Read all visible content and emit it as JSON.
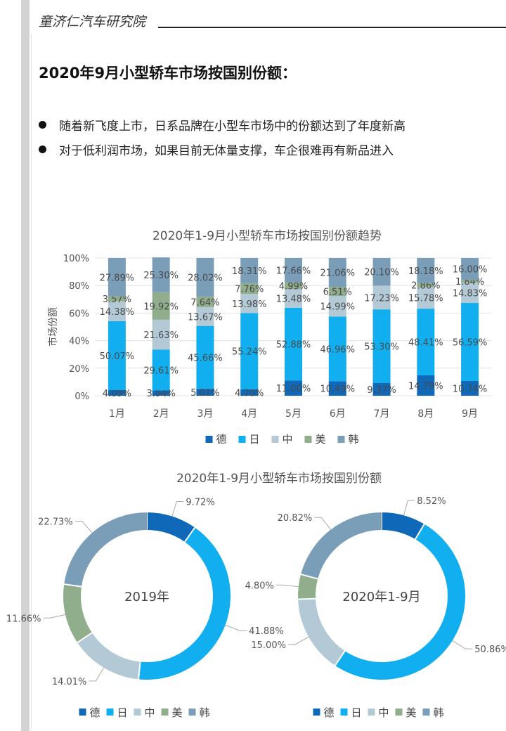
{
  "header": {
    "org": "童济仁汽车研究院"
  },
  "page_title": "2020年9月小型轿车市场按国别份额：",
  "bullets": [
    "随着新飞度上市，日系品牌在小型车市场中的份额达到了年度新高",
    "对于低利润市场，如果目前无体量支撑，车企很难再有新品进入"
  ],
  "colors": {
    "德": "#1068b8",
    "日": "#11aff0",
    "中": "#b3c9d6",
    "美": "#90ad8c",
    "韩": "#7a9db8"
  },
  "chart_data": [
    {
      "type": "bar",
      "stacked": true,
      "title": "2020年1-9月小型轿车市场按国别份额趋势",
      "ylabel": "市场份额",
      "ylim": [
        0,
        100
      ],
      "yticks": [
        "0%",
        "20%",
        "40%",
        "60%",
        "80%",
        "100%"
      ],
      "categories": [
        "1月",
        "2月",
        "3月",
        "4月",
        "5月",
        "6月",
        "7月",
        "8月",
        "9月"
      ],
      "legend_position": "bottom",
      "series": [
        {
          "name": "德",
          "values": [
            4.09,
            3.94,
            5.01,
            4.7,
            11.0,
            10.49,
            9.37,
            14.79,
            10.74
          ],
          "labels": [
            "4.09%",
            "3.94%",
            "5.01%",
            "4.70%",
            "11.00%",
            "10.49%",
            "9.37%",
            "14.79%",
            "10.74%"
          ]
        },
        {
          "name": "日",
          "values": [
            50.07,
            29.61,
            45.66,
            55.24,
            52.88,
            46.96,
            53.3,
            48.41,
            56.59
          ],
          "labels": [
            "50.07%",
            "29.61%",
            "45.66%",
            "55.24%",
            "52.88%",
            "46.96%",
            "53.30%",
            "48.41%",
            "56.59%"
          ]
        },
        {
          "name": "中",
          "values": [
            14.38,
            21.63,
            13.67,
            13.98,
            13.48,
            14.99,
            17.23,
            15.78,
            14.83
          ],
          "labels": [
            "14.38%",
            "21.63%",
            "13.67%",
            "13.98%",
            "13.48%",
            "14.99%",
            "17.23%",
            "15.78%",
            "14.83%"
          ]
        },
        {
          "name": "美",
          "values": [
            3.57,
            19.92,
            7.64,
            7.76,
            4.99,
            6.51,
            0,
            2.86,
            1.84
          ],
          "labels": [
            "3.57%",
            "19.92%",
            "7.64%",
            "7.76%",
            "4.99%",
            "6.51%",
            "",
            "2.86%",
            "1.84%"
          ]
        },
        {
          "name": "韩",
          "values": [
            27.89,
            25.3,
            28.02,
            18.31,
            17.66,
            21.06,
            20.1,
            18.18,
            16.0
          ],
          "labels": [
            "27.89%",
            "25.30%",
            "28.02%",
            "18.31%",
            "17.66%",
            "21.06%",
            "20.10%",
            "18.18%",
            "16.00%"
          ]
        }
      ]
    },
    {
      "type": "pie",
      "donut": true,
      "title": "2020年1-9月小型轿车市场按国别份额",
      "center_label": "2019年",
      "legend_position": "bottom",
      "slices": [
        {
          "name": "德",
          "value": 9.72,
          "label": "9.72%"
        },
        {
          "name": "日",
          "value": 41.88,
          "label": "41.88%"
        },
        {
          "name": "中",
          "value": 14.01,
          "label": "14.01%"
        },
        {
          "name": "美",
          "value": 11.66,
          "label": "11.66%"
        },
        {
          "name": "韩",
          "value": 22.73,
          "label": "22.73%"
        }
      ]
    },
    {
      "type": "pie",
      "donut": true,
      "center_label": "2020年1-9月",
      "legend_position": "bottom",
      "slices": [
        {
          "name": "德",
          "value": 8.52,
          "label": "8.52%"
        },
        {
          "name": "日",
          "value": 50.86,
          "label": "50.86%"
        },
        {
          "name": "中",
          "value": 15.0,
          "label": "15.00%"
        },
        {
          "name": "美",
          "value": 4.8,
          "label": "4.80%"
        },
        {
          "name": "韩",
          "value": 20.82,
          "label": "20.82%"
        }
      ]
    }
  ]
}
